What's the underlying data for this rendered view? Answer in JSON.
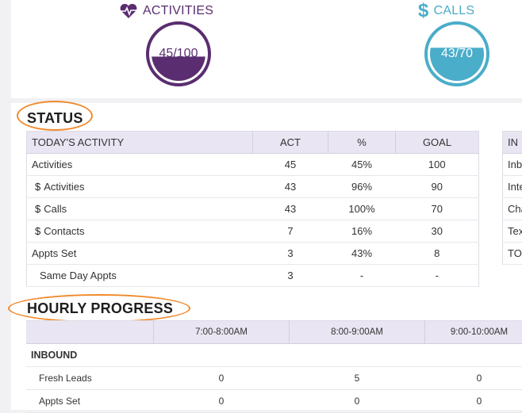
{
  "gauges": [
    {
      "label": "ACTIVITIES",
      "value": "45/100",
      "fill_fraction": 0.45,
      "color": "#5a2d70",
      "icon": "heartbeat-icon"
    },
    {
      "label": "CALLS",
      "value": "43/70",
      "fill_fraction": 0.614,
      "color": "#4aadc9",
      "icon": "dollar-icon"
    }
  ],
  "status": {
    "title": "STATUS",
    "columns": [
      "TODAY'S ACTIVITY",
      "ACT",
      "%",
      "GOAL"
    ],
    "rows": [
      {
        "label": "Activities",
        "dollar": "",
        "act": "45",
        "pct": "45%",
        "goal": "100"
      },
      {
        "label": "Activities",
        "dollar": "$",
        "act": "43",
        "pct": "96%",
        "goal": "90"
      },
      {
        "label": "Calls",
        "dollar": "$",
        "act": "43",
        "pct": "100%",
        "goal": "70"
      },
      {
        "label": "Contacts",
        "dollar": "$",
        "act": "7",
        "pct": "16%",
        "goal": "30"
      },
      {
        "label": "Appts Set",
        "dollar": "",
        "act": "3",
        "pct": "43%",
        "goal": "8"
      },
      {
        "label": "Same Day Appts",
        "dollar": "",
        "act": "3",
        "pct": "-",
        "goal": "-"
      }
    ]
  },
  "side_table": {
    "header": "IN",
    "rows": [
      "Inbo",
      "Inte",
      "Cha",
      "Tex",
      "TOT"
    ]
  },
  "hourly": {
    "title": "HOURLY PROGRESS",
    "columns": [
      "",
      "7:00-8:00AM",
      "8:00-9:00AM",
      "9:00-10:00AM"
    ],
    "group": "INBOUND",
    "rows": [
      {
        "label": "Fresh Leads",
        "values": [
          "0",
          "5",
          "0"
        ]
      },
      {
        "label": "Appts Set",
        "values": [
          "0",
          "0",
          "0"
        ]
      }
    ]
  },
  "colors": {
    "highlight_oval": "#f08a2c",
    "header_bg": "#e9e5f2"
  }
}
